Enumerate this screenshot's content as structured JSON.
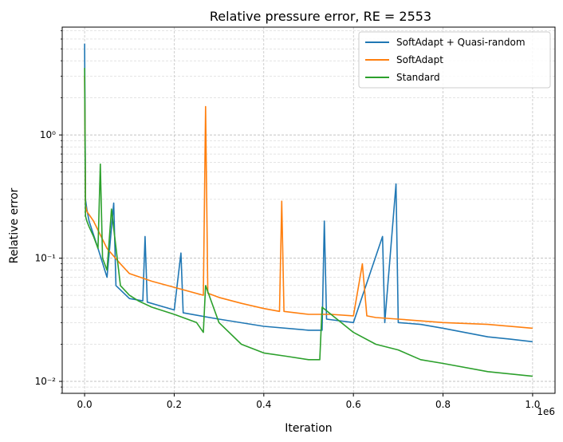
{
  "chart_data": {
    "type": "line",
    "title": "Relative pressure error, RE = 2553",
    "xlabel": "Iteration",
    "ylabel": "Relative error",
    "x_scale_label": "1e6",
    "x_tick_labels": [
      "0.0",
      "0.2",
      "0.4",
      "0.6",
      "0.8",
      "1.0"
    ],
    "x_ticks": [
      0,
      0.2,
      0.4,
      0.6,
      0.8,
      1.0
    ],
    "y_tick_labels": [
      "10⁻²",
      "10⁻¹",
      "10⁰"
    ],
    "y_ticks": [
      0.01,
      0.1,
      1
    ],
    "xlim": [
      -0.05,
      1.05
    ],
    "ylim": [
      0.008,
      7.5
    ],
    "y_scale": "log",
    "grid": true,
    "legend_position": "top-right",
    "series": [
      {
        "name": "SoftAdapt + Quasi-random",
        "color": "#1f77b4",
        "x": [
          0,
          0.002,
          0.005,
          0.01,
          0.03,
          0.05,
          0.065,
          0.07,
          0.1,
          0.13,
          0.135,
          0.14,
          0.2,
          0.215,
          0.22,
          0.3,
          0.4,
          0.5,
          0.53,
          0.535,
          0.54,
          0.6,
          0.665,
          0.67,
          0.695,
          0.7,
          0.75,
          0.8,
          0.9,
          0.95,
          1.0
        ],
        "y": [
          5.5,
          0.3,
          0.25,
          0.2,
          0.12,
          0.07,
          0.28,
          0.06,
          0.047,
          0.045,
          0.15,
          0.044,
          0.038,
          0.11,
          0.036,
          0.032,
          0.028,
          0.026,
          0.026,
          0.2,
          0.032,
          0.03,
          0.15,
          0.03,
          0.4,
          0.03,
          0.029,
          0.027,
          0.023,
          0.022,
          0.021
        ]
      },
      {
        "name": "SoftAdapt",
        "color": "#ff7f0e",
        "x": [
          0,
          0.002,
          0.005,
          0.02,
          0.05,
          0.08,
          0.1,
          0.15,
          0.2,
          0.265,
          0.27,
          0.275,
          0.3,
          0.35,
          0.4,
          0.435,
          0.44,
          0.445,
          0.5,
          0.55,
          0.6,
          0.62,
          0.63,
          0.65,
          0.7,
          0.8,
          0.9,
          1.0
        ],
        "y": [
          3.0,
          0.27,
          0.24,
          0.2,
          0.12,
          0.09,
          0.075,
          0.065,
          0.058,
          0.05,
          1.7,
          0.052,
          0.048,
          0.043,
          0.039,
          0.037,
          0.29,
          0.037,
          0.035,
          0.035,
          0.034,
          0.09,
          0.034,
          0.033,
          0.032,
          0.03,
          0.029,
          0.027
        ]
      },
      {
        "name": "Standard",
        "color": "#2ca02c",
        "x": [
          0,
          0.002,
          0.005,
          0.01,
          0.02,
          0.03,
          0.035,
          0.04,
          0.05,
          0.06,
          0.08,
          0.1,
          0.12,
          0.15,
          0.2,
          0.25,
          0.265,
          0.27,
          0.3,
          0.35,
          0.4,
          0.45,
          0.5,
          0.525,
          0.53,
          0.55,
          0.6,
          0.65,
          0.7,
          0.75,
          0.8,
          0.9,
          1.0
        ],
        "y": [
          3.5,
          0.22,
          0.2,
          0.18,
          0.15,
          0.12,
          0.58,
          0.1,
          0.08,
          0.25,
          0.06,
          0.05,
          0.045,
          0.04,
          0.035,
          0.03,
          0.025,
          0.06,
          0.03,
          0.02,
          0.017,
          0.016,
          0.015,
          0.015,
          0.04,
          0.035,
          0.025,
          0.02,
          0.018,
          0.015,
          0.014,
          0.012,
          0.011
        ]
      }
    ]
  }
}
